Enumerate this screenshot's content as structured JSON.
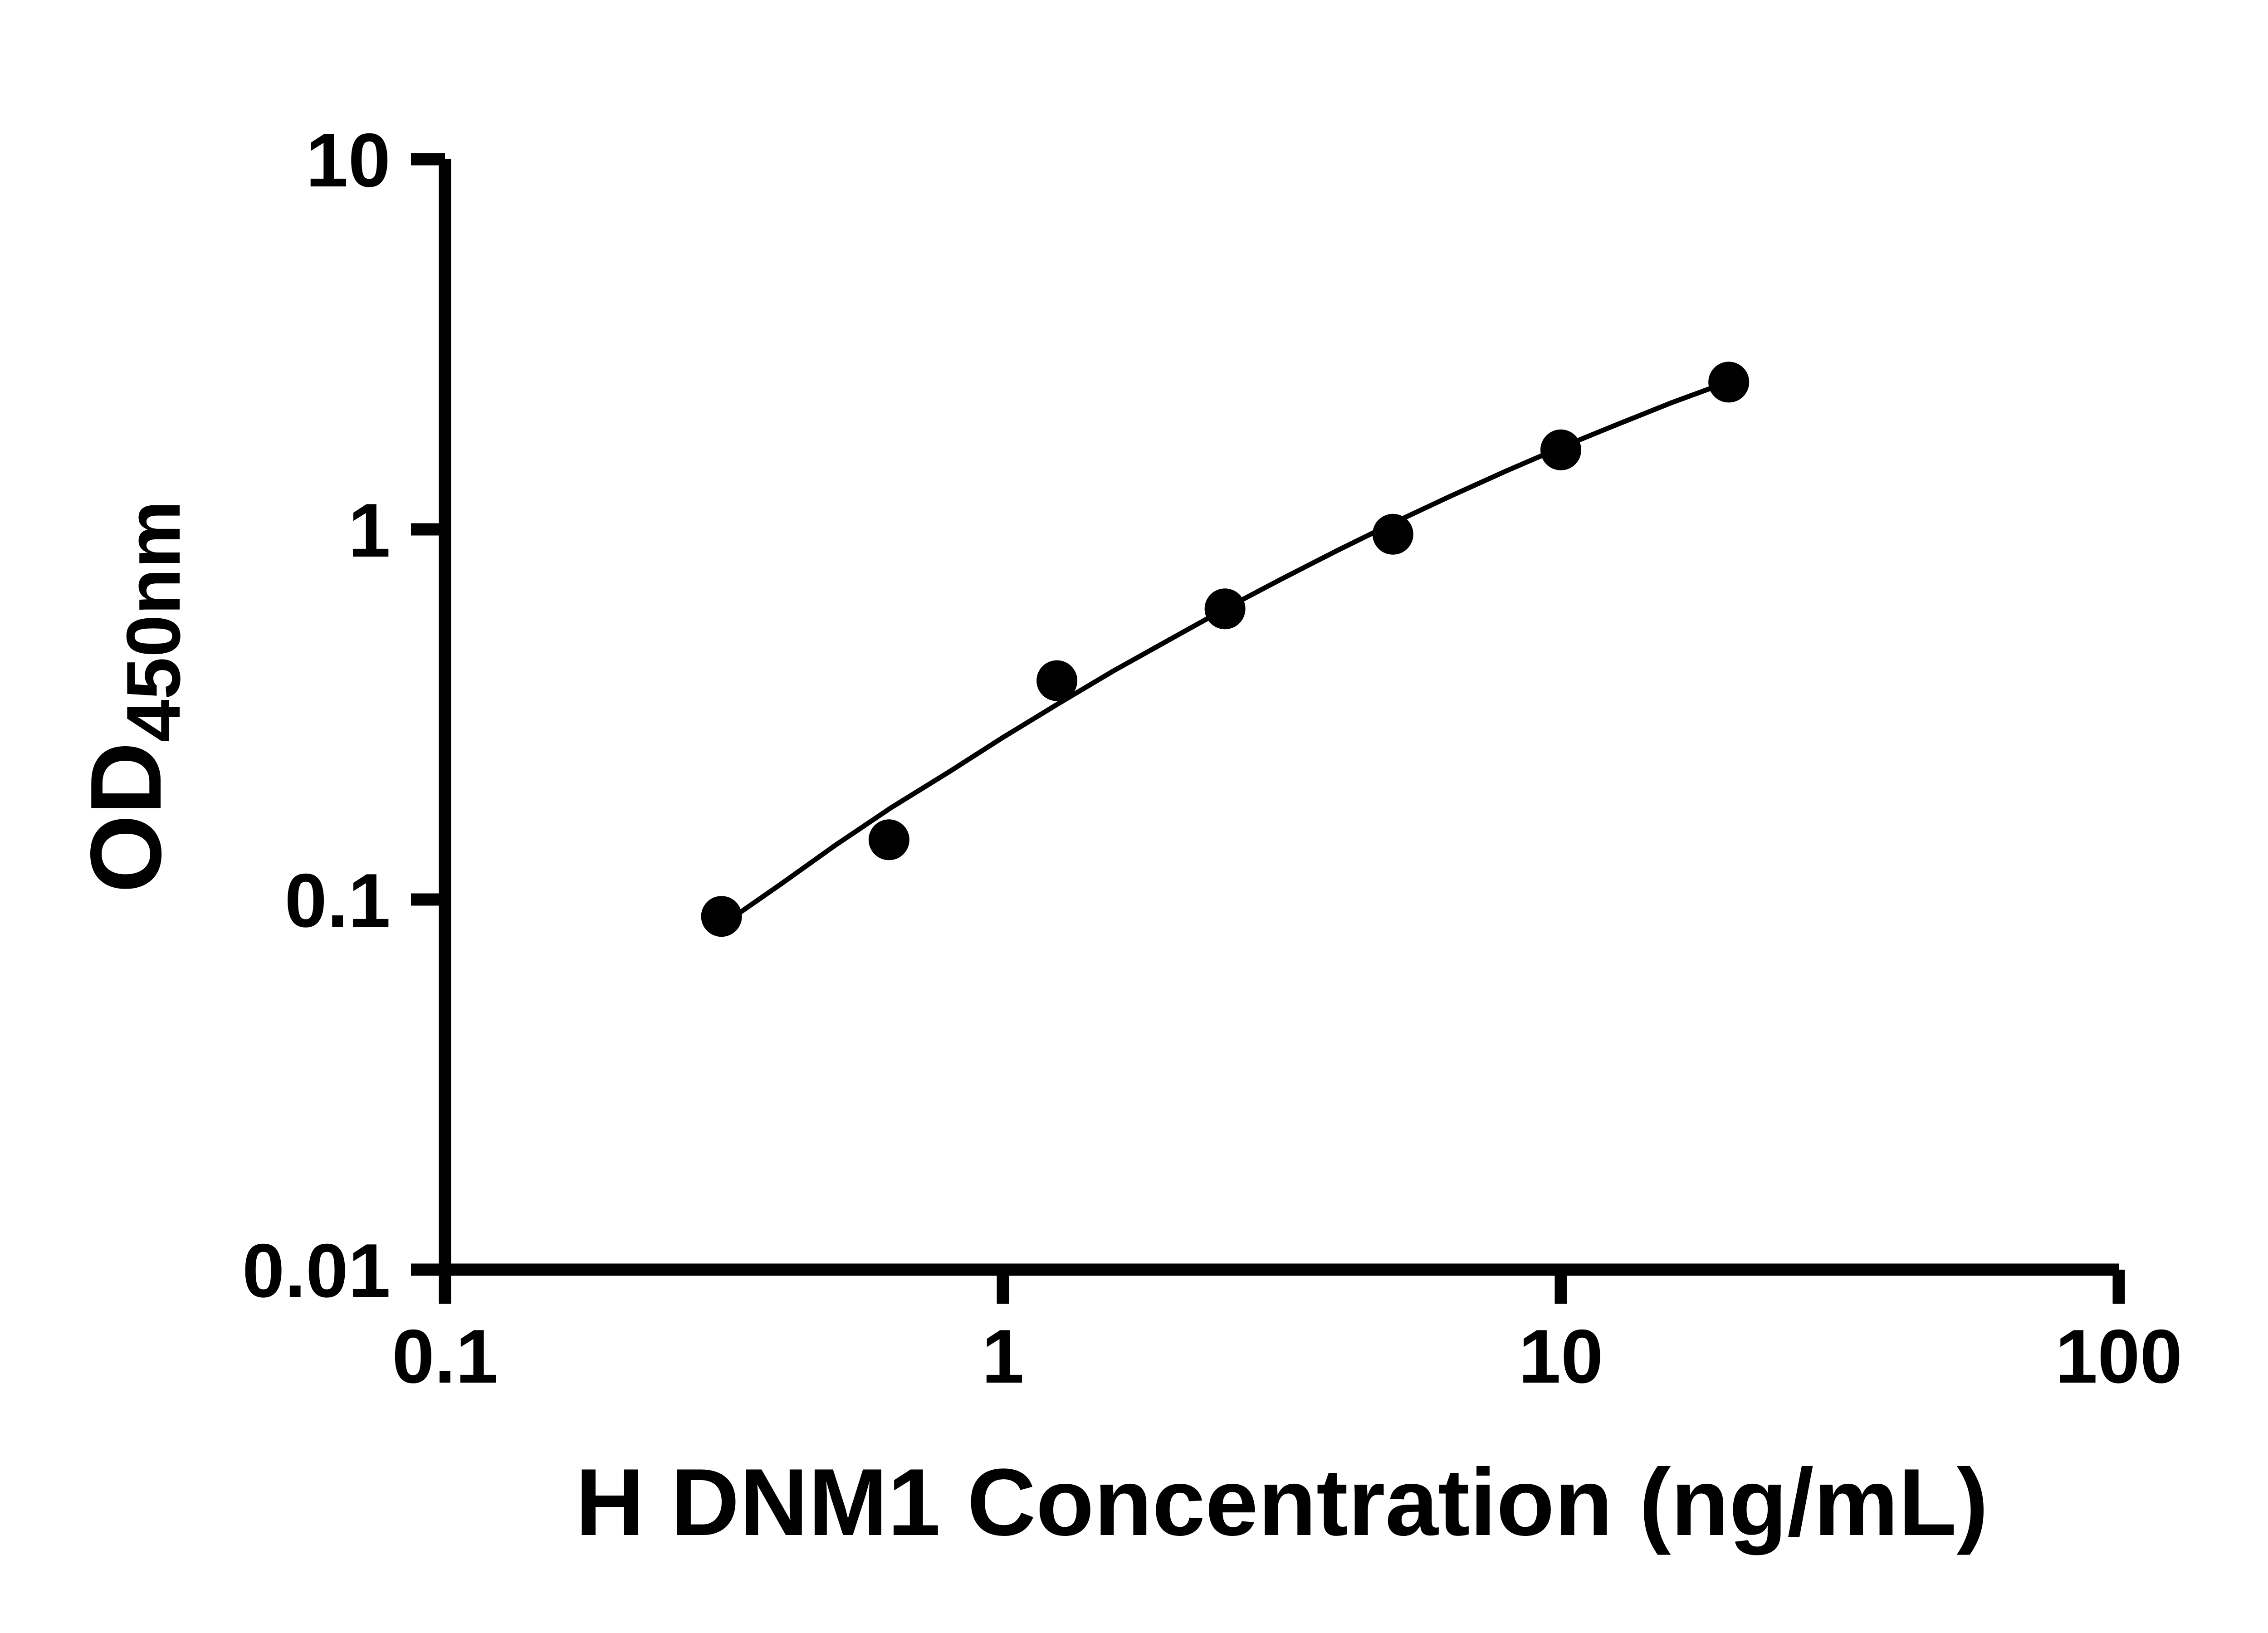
{
  "figure": {
    "background": "#ffffff",
    "foreground": "#000000"
  },
  "chart_data": {
    "type": "scatter",
    "title": "",
    "xlabel": "H DNM1 Concentration (ng/mL)",
    "ylabel_main": "OD",
    "ylabel_sub": "450nm",
    "x_scale": "log10",
    "y_scale": "log10",
    "xlim": [
      0.1,
      100
    ],
    "ylim": [
      0.01,
      10
    ],
    "grid": false,
    "legend": "none",
    "marker_color": "#000000",
    "line_color": "#000000",
    "x_ticks": [
      {
        "value": 0.1,
        "label": "0.1"
      },
      {
        "value": 1,
        "label": "1"
      },
      {
        "value": 10,
        "label": "10"
      },
      {
        "value": 100,
        "label": "100"
      }
    ],
    "y_ticks": [
      {
        "value": 10,
        "label": "10"
      },
      {
        "value": 1,
        "label": "1"
      },
      {
        "value": 0.1,
        "label": "0.1"
      },
      {
        "value": 0.01,
        "label": "0.01"
      }
    ],
    "points": [
      {
        "x": 0.313,
        "y": 0.09
      },
      {
        "x": 0.625,
        "y": 0.145
      },
      {
        "x": 1.25,
        "y": 0.39
      },
      {
        "x": 2.5,
        "y": 0.61
      },
      {
        "x": 5,
        "y": 0.97
      },
      {
        "x": 10,
        "y": 1.64
      },
      {
        "x": 20,
        "y": 2.5
      }
    ],
    "fit_curve": [
      [
        0.3125,
        0.085
      ],
      [
        0.4,
        0.11
      ],
      [
        0.5,
        0.14
      ],
      [
        0.63,
        0.177
      ],
      [
        0.8,
        0.221
      ],
      [
        1.0,
        0.274
      ],
      [
        1.26,
        0.339
      ],
      [
        1.58,
        0.415
      ],
      [
        2.0,
        0.506
      ],
      [
        2.51,
        0.612
      ],
      [
        3.16,
        0.735
      ],
      [
        3.98,
        0.878
      ],
      [
        5.01,
        1.041
      ],
      [
        6.31,
        1.225
      ],
      [
        7.94,
        1.433
      ],
      [
        10.0,
        1.664
      ],
      [
        12.6,
        1.919
      ],
      [
        15.8,
        2.199
      ],
      [
        20.0,
        2.505
      ]
    ]
  }
}
